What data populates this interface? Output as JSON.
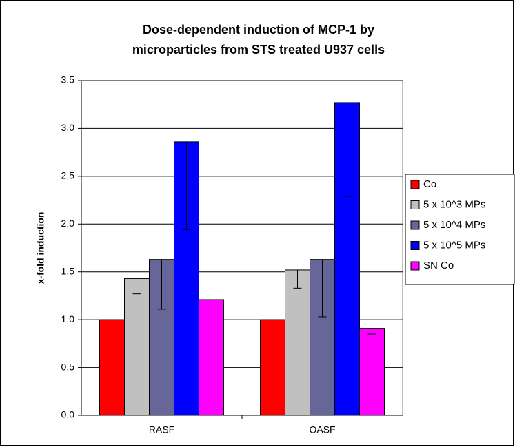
{
  "chart_data": {
    "type": "bar",
    "title": [
      "Dose-dependent induction of MCP-1 by",
      "microparticles from STS treated U937 cells"
    ],
    "y_label": "x-fold induction",
    "categories": [
      "RASF",
      "OASF"
    ],
    "series": [
      {
        "name": "Co",
        "color": "#ff0000",
        "values": [
          1.0,
          1.0
        ],
        "errors": [
          null,
          null
        ]
      },
      {
        "name": "5 x 10^3 MPs",
        "color": "#c0c0c0",
        "values": [
          1.43,
          1.52
        ],
        "errors": [
          0.16,
          0.19
        ]
      },
      {
        "name": "5 x 10^4 MPs",
        "color": "#666699",
        "values": [
          1.63,
          1.63
        ],
        "errors": [
          0.52,
          0.6
        ]
      },
      {
        "name": "5 x 10^5 MPs",
        "color": "#0000ff",
        "values": [
          2.86,
          3.27
        ],
        "errors": [
          0.92,
          0.98
        ]
      },
      {
        "name": "SN Co",
        "color": "#ff00ff",
        "values": [
          1.21,
          0.91
        ],
        "errors": [
          null,
          0.06
        ]
      }
    ],
    "ylim": [
      0,
      3.5
    ],
    "yticks": [
      {
        "value": 0,
        "label": "0,0"
      },
      {
        "value": 0.5,
        "label": "0,5"
      },
      {
        "value": 1,
        "label": "1,0"
      },
      {
        "value": 1.5,
        "label": "1,5"
      },
      {
        "value": 2,
        "label": "2,0"
      },
      {
        "value": 2.5,
        "label": "2,5"
      },
      {
        "value": 3,
        "label": "3,0"
      },
      {
        "value": 3.5,
        "label": "3,5"
      }
    ],
    "grid": true,
    "legend": "right"
  }
}
